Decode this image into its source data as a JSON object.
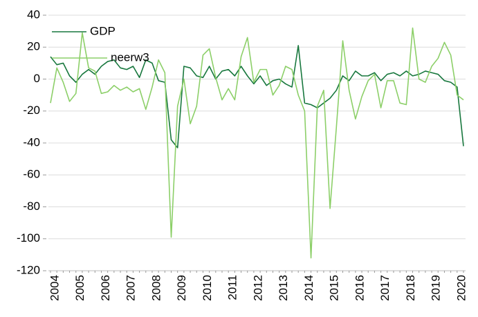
{
  "chart_data": {
    "type": "line",
    "categories": [
      "2004",
      null,
      null,
      null,
      "2005",
      null,
      null,
      null,
      "2006",
      null,
      null,
      null,
      "2007",
      null,
      null,
      null,
      "2008",
      null,
      null,
      null,
      "2009",
      null,
      null,
      null,
      "2010",
      null,
      null,
      null,
      "2011",
      null,
      null,
      null,
      "2012",
      null,
      null,
      null,
      "2013",
      null,
      null,
      null,
      "2014",
      null,
      null,
      null,
      "2015",
      null,
      null,
      null,
      "2016",
      null,
      null,
      null,
      "2017",
      null,
      null,
      null,
      "2018",
      null,
      null,
      null,
      "2019",
      null,
      null,
      null,
      "2020",
      null
    ],
    "series": [
      {
        "name": "GDP",
        "color": "#17773d",
        "values": [
          14,
          9,
          10,
          2,
          -2,
          3,
          6,
          3,
          8,
          11,
          12,
          7,
          6,
          8,
          1,
          12,
          10,
          -1,
          -2,
          -38,
          -43,
          8,
          7,
          2,
          1,
          8,
          0,
          5,
          6,
          2,
          8,
          2,
          -3,
          2,
          -4,
          -1,
          0,
          -3,
          -5,
          21,
          -15,
          -16,
          -18,
          -15,
          -12,
          -7,
          2,
          -1,
          5,
          2,
          2,
          4,
          -1,
          3,
          4,
          2,
          5,
          2,
          3,
          5,
          4,
          3,
          -1,
          -2,
          -5,
          -42
        ]
      },
      {
        "name": "neerw3",
        "color": "#8ccf68",
        "values": [
          -15,
          7,
          -2,
          -14,
          -9,
          29,
          7,
          5,
          -9,
          -8,
          -4,
          -7,
          -5,
          -8,
          -6,
          -19,
          -5,
          12,
          4,
          -99,
          -17,
          0,
          -28,
          -17,
          15,
          19,
          1,
          -13,
          -6,
          -13,
          14,
          26,
          -2,
          6,
          6,
          -10,
          -4,
          8,
          6,
          -10,
          -20,
          -112,
          -17,
          -7,
          -81,
          -30,
          24,
          -7,
          -25,
          -11,
          -1,
          3,
          -18,
          -1,
          -1,
          -15,
          -16,
          32,
          0,
          -2,
          8,
          13,
          23,
          15,
          -10,
          -13
        ]
      }
    ],
    "ylim": [
      -120,
      40
    ],
    "yticks": [
      -120,
      -100,
      -80,
      -60,
      -40,
      -20,
      0,
      20,
      40
    ],
    "grid": true,
    "legend": "upper left"
  }
}
